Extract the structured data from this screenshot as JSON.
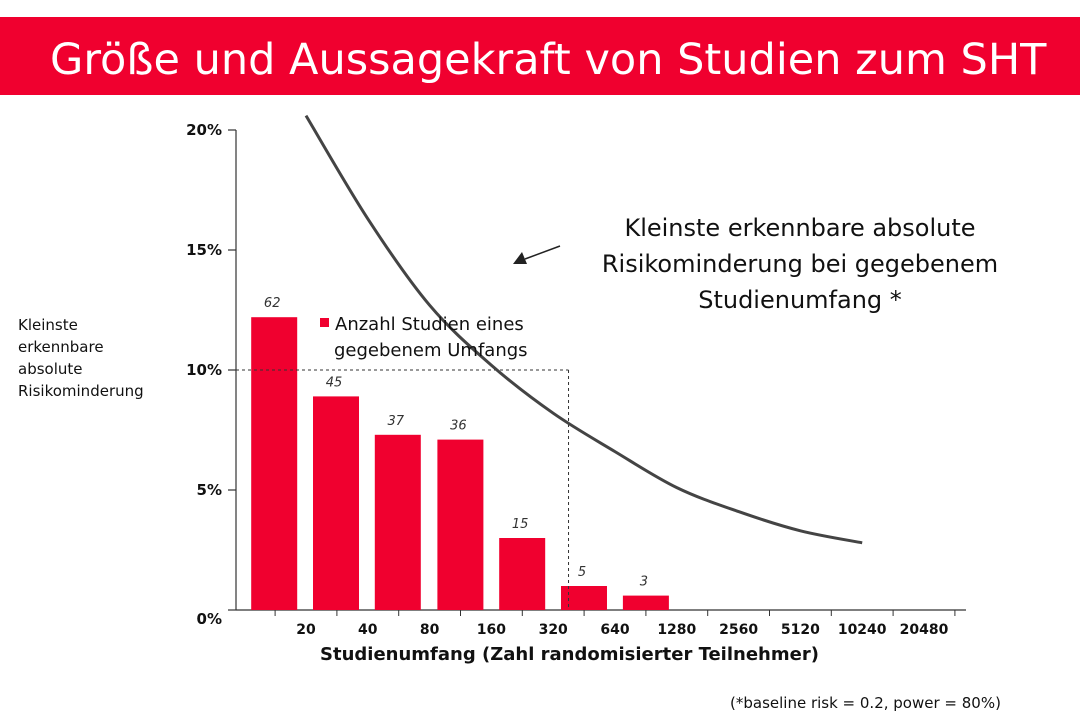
{
  "title": "Größe und Aussagekraft von Studien zum SHT",
  "colors": {
    "accent": "#f0002f",
    "curve": "#444444"
  },
  "ylabel_lines": [
    "Kleinste",
    "erkennbare",
    "absolute",
    "Risikominderung"
  ],
  "xlabel": "Studienumfang (Zahl randomisierter Teilnehmer)",
  "footnote": "(*baseline risk = 0.2, power = 80%)",
  "curve_label_lines": [
    "Kleinste erkennbare absolute",
    "Risikominderung bei gegebenem",
    "Studienumfang *"
  ],
  "legend_lines": [
    "Anzahl Studien eines",
    "gegebenem Umfangs"
  ],
  "chart_data": {
    "type": "bar",
    "categories": [
      "20",
      "40",
      "80",
      "160",
      "320",
      "640",
      "1280",
      "2560",
      "5120",
      "10240",
      "20480"
    ],
    "y_tick_labels": [
      "0%",
      "5%",
      "10%",
      "15%",
      "20%"
    ],
    "ylim": [
      0,
      20
    ],
    "x_scale": "log2",
    "grid": false,
    "legend_position": "top-left",
    "series": [
      {
        "name": "Anzahl Studien eines gegebenem Umfangs",
        "type": "bar",
        "x": [
          14,
          28,
          56,
          113,
          226,
          452,
          905
        ],
        "values": [
          12.2,
          8.9,
          7.3,
          7.1,
          3.0,
          1.0,
          0.6
        ],
        "data_labels": [
          "62",
          "45",
          "37",
          "36",
          "15",
          "5",
          "3"
        ]
      },
      {
        "name": "Kleinste erkennbare absolute Risikominderung bei gegebenem Studienumfang *",
        "type": "line",
        "x": [
          20,
          40,
          80,
          160,
          320,
          640,
          1280,
          2560,
          5120,
          10240
        ],
        "values": [
          20.6,
          16.3,
          12.7,
          10.2,
          8.2,
          6.6,
          5.1,
          4.1,
          3.3,
          2.8
        ]
      }
    ],
    "reference": {
      "x": 380,
      "y": 10
    }
  }
}
